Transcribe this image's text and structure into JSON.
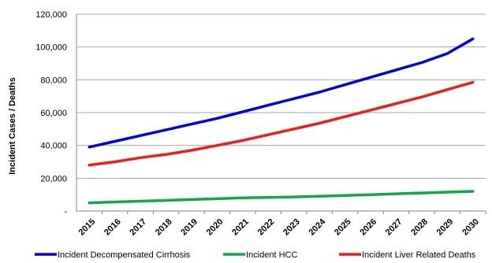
{
  "chart_data": {
    "type": "line",
    "title": "",
    "xlabel": "",
    "ylabel": "Incident Cases / Deaths",
    "x": [
      2015,
      2016,
      2017,
      2018,
      2019,
      2020,
      2021,
      2022,
      2023,
      2024,
      2025,
      2026,
      2027,
      2028,
      2029,
      2030
    ],
    "ylim": [
      0,
      120000
    ],
    "yticks": [
      0,
      20000,
      40000,
      60000,
      80000,
      100000,
      120000
    ],
    "ytick_labels": [
      "-",
      "20,000",
      "40,000",
      "60,000",
      "80,000",
      "100,000",
      "120,000"
    ],
    "grid": "horizontal",
    "legend_position": "bottom",
    "series": [
      {
        "name": "Incident Decompensated Cirrhosis",
        "color": "#0000e6",
        "values": [
          39000,
          42500,
          46000,
          49500,
          53000,
          56500,
          60500,
          64500,
          68500,
          72500,
          77000,
          81500,
          86000,
          90500,
          96000,
          105000
        ]
      },
      {
        "name": "Incident HCC",
        "color": "#10a84a",
        "values": [
          5000,
          5500,
          6000,
          6500,
          7000,
          7500,
          8000,
          8300,
          8600,
          9000,
          9500,
          10000,
          10500,
          11000,
          11500,
          12000
        ]
      },
      {
        "name": "Incident Liver Related Deaths",
        "color": "#ee1c1c",
        "values": [
          28000,
          30000,
          32500,
          34500,
          37000,
          40000,
          43000,
          46500,
          50000,
          53500,
          57500,
          61500,
          65500,
          69500,
          74000,
          78500
        ]
      }
    ]
  }
}
